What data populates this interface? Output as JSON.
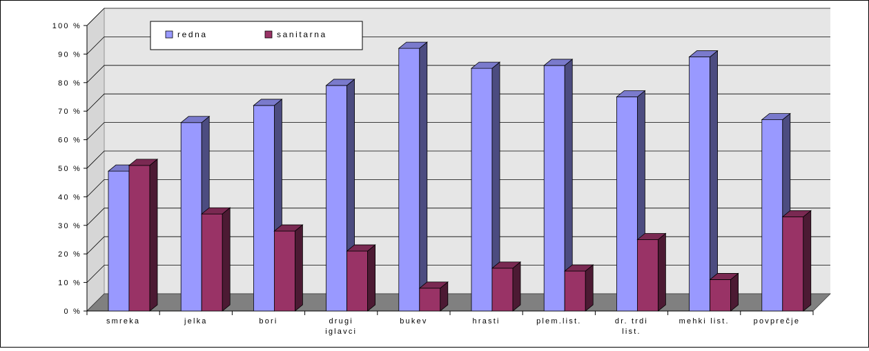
{
  "chart_data": {
    "type": "bar",
    "categories": [
      [
        "smreka"
      ],
      [
        "jelka"
      ],
      [
        "bori"
      ],
      [
        "drugi",
        "iglavci"
      ],
      [
        "bukev"
      ],
      [
        "hrasti"
      ],
      [
        "plem.list."
      ],
      [
        "dr. trdi",
        "list."
      ],
      [
        "mehki list."
      ],
      [
        "povprečje"
      ]
    ],
    "series": [
      {
        "name": "redna",
        "values": [
          49,
          66,
          72,
          79,
          92,
          85,
          86,
          75,
          89,
          67
        ],
        "color": "#9999ff",
        "side_color": "#4c4c80",
        "top_color": "#7a7acc"
      },
      {
        "name": "sanitarna",
        "values": [
          51,
          34,
          28,
          21,
          8,
          15,
          14,
          25,
          11,
          33
        ],
        "color": "#993366",
        "side_color": "#4c1a33",
        "top_color": "#7a2952"
      }
    ],
    "ylim": [
      0,
      100
    ],
    "y_ticks": [
      "0 %",
      "10 %",
      "20 %",
      "30 %",
      "40 %",
      "50 %",
      "60 %",
      "70 %",
      "80 %",
      "90 %",
      "100 %"
    ],
    "grid": true,
    "legend": "top-left",
    "wall_color": "#e6e6e6",
    "floor_color": "#808080"
  }
}
